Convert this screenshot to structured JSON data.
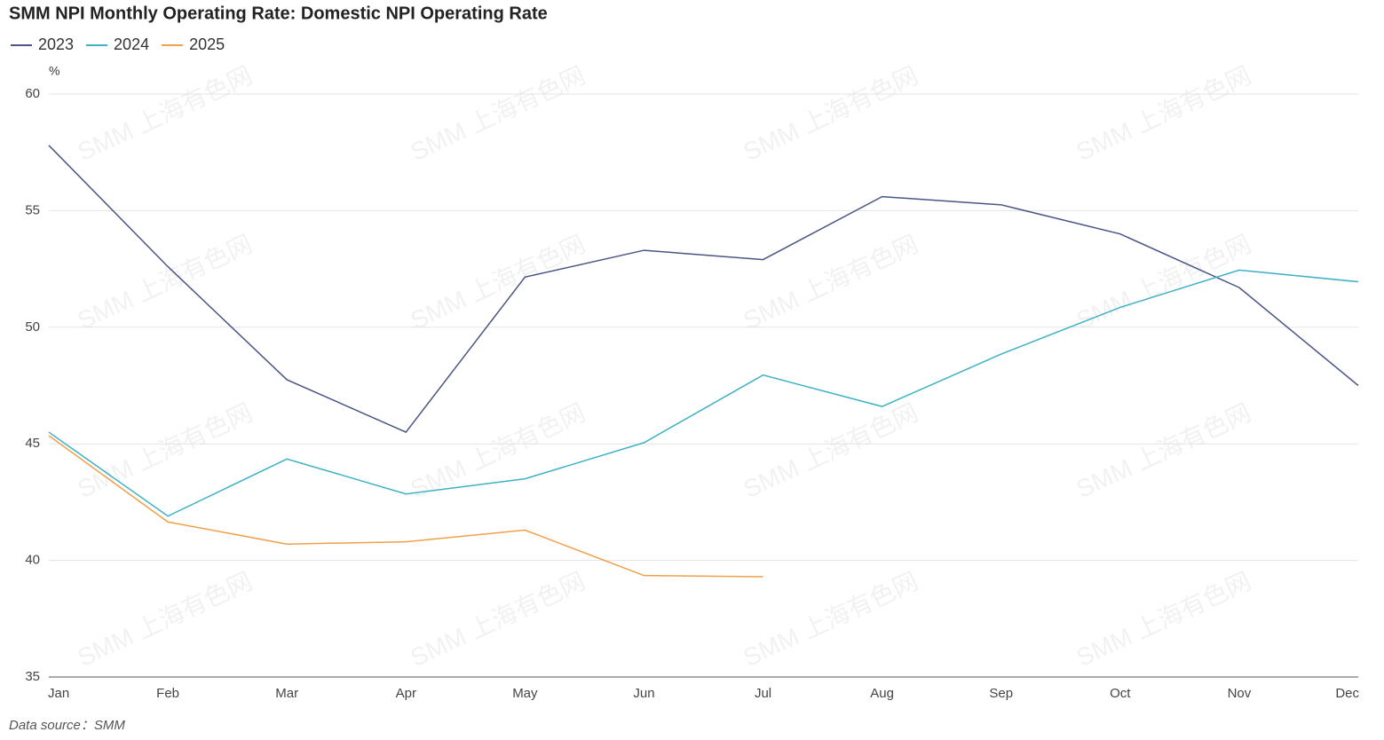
{
  "chart_data": {
    "type": "line",
    "title": "SMM NPI Monthly Operating Rate: Domestic NPI Operating Rate",
    "y_unit": "%",
    "source": "Data source：SMM",
    "watermark": "SMM 上海有色网",
    "categories": [
      "Jan",
      "Feb",
      "Mar",
      "Apr",
      "May",
      "Jun",
      "Jul",
      "Aug",
      "Sep",
      "Oct",
      "Nov",
      "Dec"
    ],
    "series": [
      {
        "name": "2023",
        "color": "#4a5585",
        "values": [
          57.8,
          52.6,
          47.75,
          45.5,
          52.15,
          53.3,
          52.9,
          55.6,
          55.25,
          54.0,
          51.7,
          47.5
        ]
      },
      {
        "name": "2024",
        "color": "#3fb1c6",
        "values": [
          45.5,
          41.9,
          44.35,
          42.85,
          43.5,
          45.05,
          47.95,
          46.6,
          48.85,
          50.85,
          52.45,
          51.95
        ]
      },
      {
        "name": "2025",
        "color": "#f0a04b",
        "values": [
          45.35,
          41.65,
          40.7,
          40.8,
          41.3,
          39.35,
          39.3,
          null,
          null,
          null,
          null,
          null
        ]
      }
    ],
    "ylim": [
      35,
      60
    ],
    "yticks": [
      35,
      40,
      45,
      50,
      55,
      60
    ],
    "grid": true,
    "legend": "top-left"
  }
}
